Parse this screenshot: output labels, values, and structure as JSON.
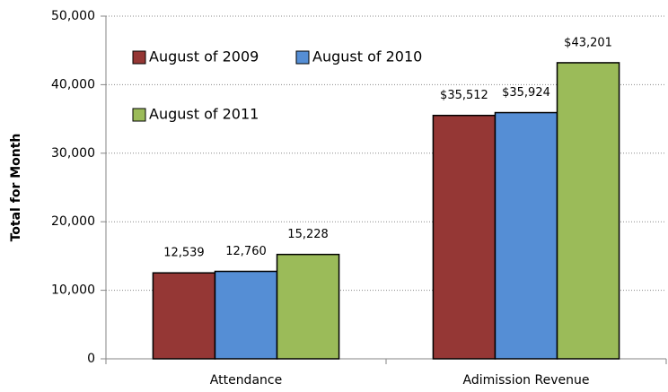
{
  "chart_data": {
    "type": "bar",
    "y_label": "Total for Month",
    "categories": [
      "Attendance",
      "Adimission Revenue"
    ],
    "series": [
      {
        "name": "August of 2009",
        "color": "#953735",
        "values": [
          12539,
          35512
        ],
        "value_labels": [
          "12,539",
          "$35,512"
        ]
      },
      {
        "name": "August of 2010",
        "color": "#558ed5",
        "values": [
          12760,
          35924
        ],
        "value_labels": [
          "12,760",
          "$35,924"
        ]
      },
      {
        "name": "August of 2011",
        "color": "#9bbb59",
        "values": [
          15228,
          43201
        ],
        "value_labels": [
          "15,228",
          "$43,201"
        ]
      }
    ],
    "ylim": [
      0,
      50000
    ],
    "yticks": [
      0,
      {
        "value": 10000,
        "label": "10,000"
      },
      {
        "value": 20000,
        "label": "20,000"
      },
      {
        "value": 30000,
        "label": "30,000"
      },
      {
        "value": 40000,
        "label": "40,000"
      },
      {
        "value": 50000,
        "label": "50,000"
      }
    ],
    "grid": true
  }
}
